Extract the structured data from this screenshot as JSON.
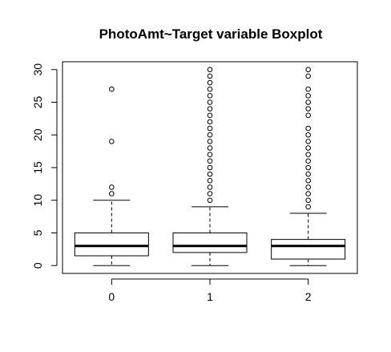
{
  "chart_data": {
    "type": "boxplot",
    "title": "PhotoAmt~Target variable Boxplot",
    "xlabel": "",
    "ylabel": "",
    "categories": [
      "0",
      "1",
      "2"
    ],
    "ylim": [
      -1.2,
      31.2
    ],
    "y_ticks": [
      0,
      5,
      10,
      15,
      20,
      25,
      30
    ],
    "grid": false,
    "boxes": [
      {
        "category": "0",
        "q1": 1.5,
        "median": 3,
        "q3": 5,
        "whisker_low": 0,
        "whisker_high": 10,
        "outliers": [
          11,
          12,
          19,
          27
        ]
      },
      {
        "category": "1",
        "q1": 2,
        "median": 3,
        "q3": 5,
        "whisker_low": 0,
        "whisker_high": 9,
        "outliers": [
          10,
          11,
          12,
          13,
          14,
          15,
          16,
          17,
          18,
          19,
          20,
          21,
          22,
          23,
          24,
          25,
          26,
          27,
          28,
          29,
          30
        ]
      },
      {
        "category": "2",
        "q1": 1,
        "median": 3,
        "q3": 4,
        "whisker_low": 0,
        "whisker_high": 8,
        "outliers": [
          9,
          10,
          11,
          12,
          13,
          14,
          15,
          16,
          17,
          18,
          19,
          20,
          21,
          23,
          24,
          25,
          26,
          27,
          29,
          30
        ]
      }
    ]
  }
}
